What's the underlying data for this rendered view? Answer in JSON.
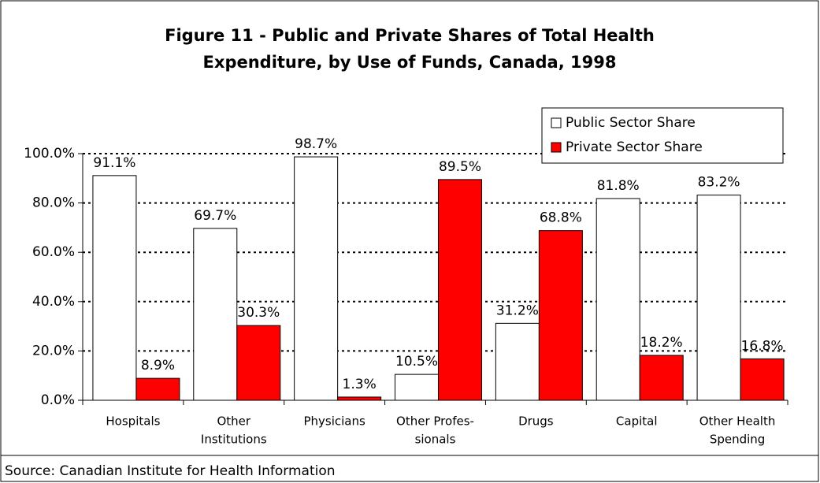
{
  "chart_data": {
    "type": "bar",
    "title": [
      "Figure 11 - Public and Private Shares of Total Health",
      "Expenditure, by Use of Funds, Canada, 1998"
    ],
    "categories": [
      [
        "Hospitals"
      ],
      [
        "Other",
        "Institutions"
      ],
      [
        "Physicians"
      ],
      [
        "Other Profes-",
        "sionals"
      ],
      [
        "Drugs"
      ],
      [
        "Capital"
      ],
      [
        "Other Health",
        "Spending"
      ]
    ],
    "series": [
      {
        "name": "Public Sector Share",
        "color": "#ffffff",
        "values": [
          91.1,
          69.7,
          98.7,
          10.5,
          31.2,
          81.8,
          83.2
        ],
        "value_labels": [
          "91.1%",
          "69.7%",
          "98.7%",
          "10.5%",
          "31.2%",
          "81.8%",
          "83.2%"
        ]
      },
      {
        "name": "Private Sector Share",
        "color": "#ff0000",
        "values": [
          8.9,
          30.3,
          1.3,
          89.5,
          68.8,
          18.2,
          16.8
        ],
        "value_labels": [
          "8.9%",
          "30.3%",
          "1.3%",
          "89.5%",
          "68.8%",
          "18.2%",
          "16.8%"
        ]
      }
    ],
    "ylim": [
      0,
      100
    ],
    "yticks": [
      {
        "value": 0,
        "label": "0.0%"
      },
      {
        "value": 20,
        "label": "20.0%"
      },
      {
        "value": 40,
        "label": "40.0%"
      },
      {
        "value": 60,
        "label": "60.0%"
      },
      {
        "value": 80,
        "label": "80.0%"
      },
      {
        "value": 100,
        "label": "100.0%"
      }
    ],
    "grid": true,
    "legend": "top-right",
    "source": "Source: Canadian Institute for Health Information"
  }
}
